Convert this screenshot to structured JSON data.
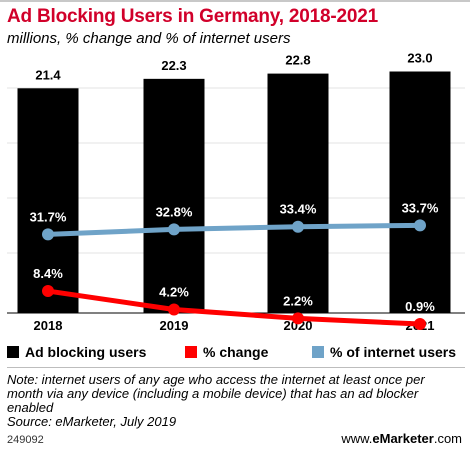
{
  "header": {
    "title": "Ad Blocking Users in Germany, 2018-2021",
    "subtitle": "millions, % change and % of internet users"
  },
  "legend": {
    "items": [
      {
        "label": "Ad blocking users",
        "color": "#000000"
      },
      {
        "label": "% change",
        "color": "#ff0000"
      },
      {
        "label": "% of internet users",
        "color": "#6fa3c8"
      }
    ]
  },
  "chart_data": {
    "type": "bar",
    "categories": [
      "2018",
      "2019",
      "2020",
      "2021"
    ],
    "series": [
      {
        "name": "Ad blocking users",
        "type": "bar",
        "values": [
          21.4,
          22.3,
          22.8,
          23.0
        ],
        "labels": [
          "21.4",
          "22.3",
          "22.8",
          "23.0"
        ],
        "color": "#000000"
      },
      {
        "name": "% change",
        "type": "line",
        "values": [
          8.4,
          4.2,
          2.2,
          0.9
        ],
        "labels": [
          "8.4%",
          "4.2%",
          "2.2%",
          "0.9%"
        ],
        "color": "#ff0000"
      },
      {
        "name": "% of internet users",
        "type": "line",
        "values": [
          31.7,
          32.8,
          33.4,
          33.7
        ],
        "labels": [
          "31.7%",
          "32.8%",
          "33.4%",
          "33.7%"
        ],
        "color": "#6fa3c8"
      }
    ]
  },
  "footer": {
    "note_lines": [
      "Note: internet users of any age who access the internet at least once per",
      "month via any device (including a mobile device) that has an ad blocker",
      "enabled",
      "Source: eMarketer, July 2019"
    ],
    "code": "249092",
    "brand_prefix": "www.",
    "brand_bold": "eMarketer",
    "brand_suffix": ".com"
  }
}
